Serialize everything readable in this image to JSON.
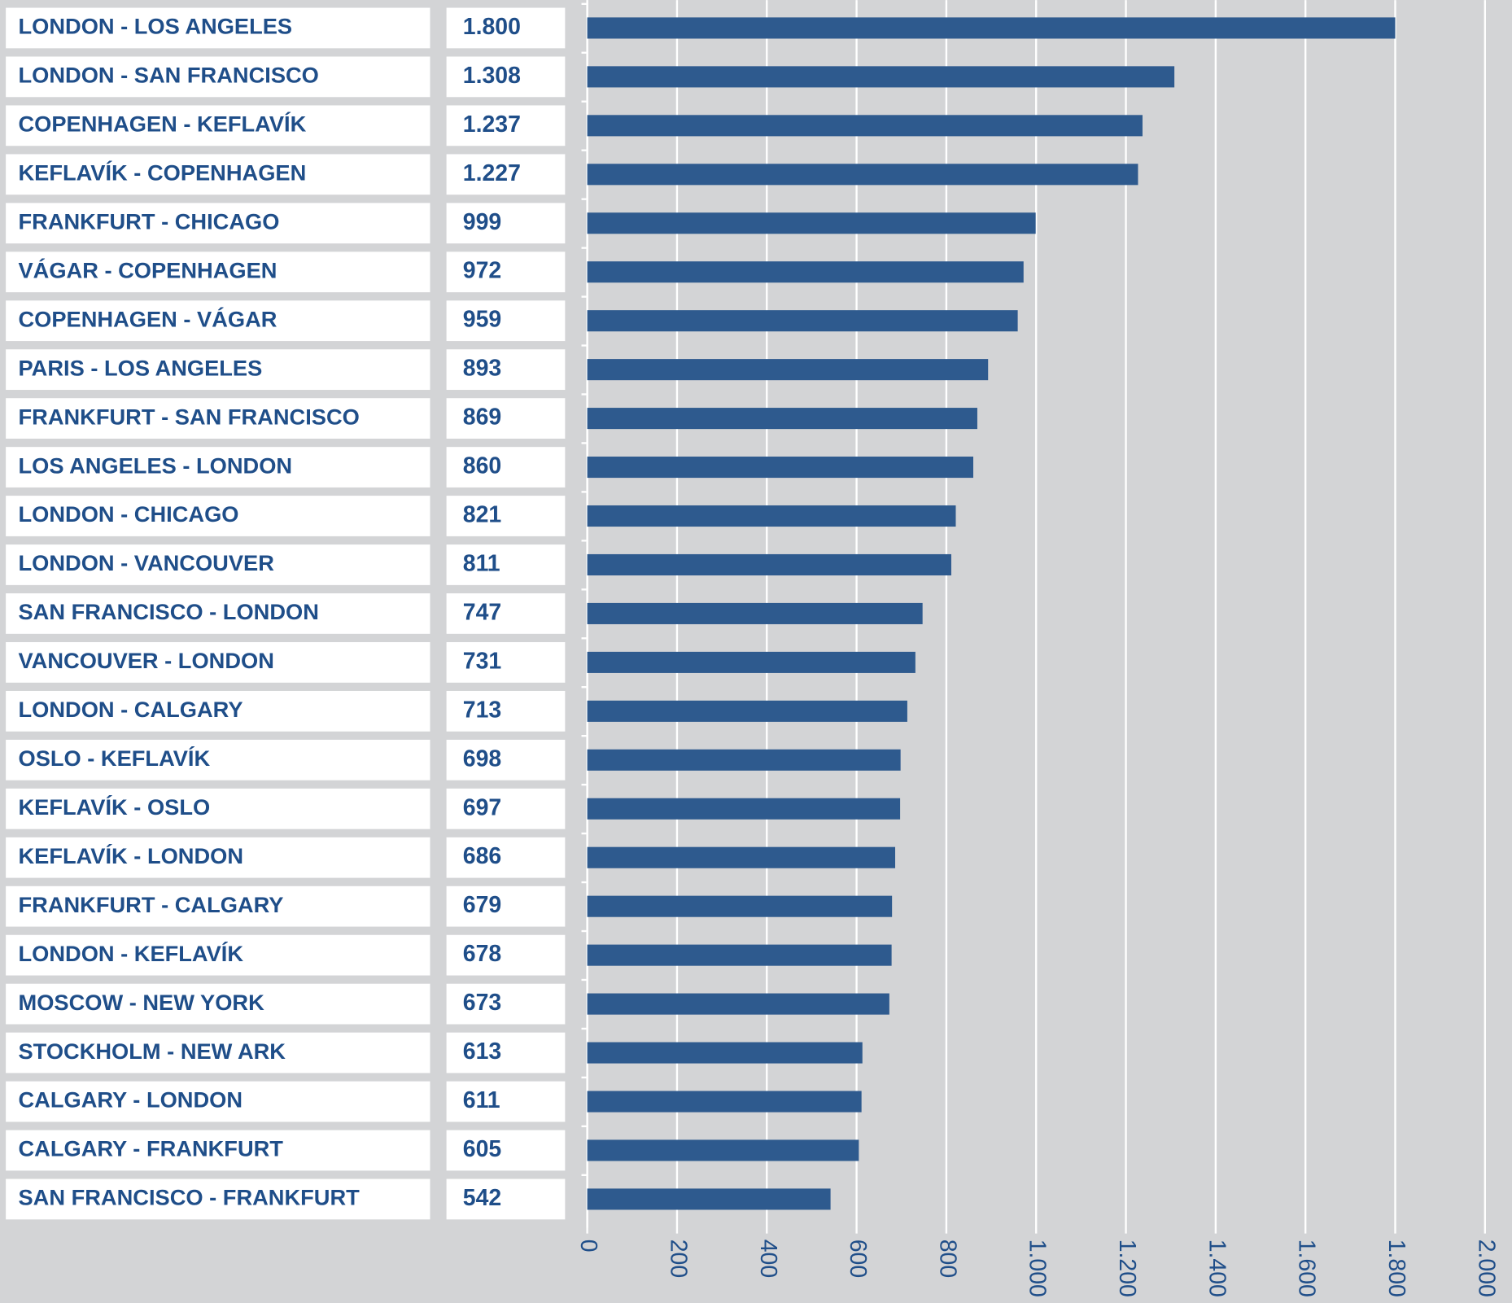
{
  "chart_data": {
    "type": "bar",
    "orientation": "horizontal",
    "categories": [
      "LONDON - LOS ANGELES",
      "LONDON - SAN FRANCISCO",
      "COPENHAGEN - KEFLAVÍK",
      "KEFLAVÍK - COPENHAGEN",
      "FRANKFURT - CHICAGO",
      "VÁGAR - COPENHAGEN",
      "COPENHAGEN - VÁGAR",
      "PARIS - LOS ANGELES",
      "FRANKFURT - SAN FRANCISCO",
      "LOS ANGELES - LONDON",
      "LONDON - CHICAGO",
      "LONDON - VANCOUVER",
      "SAN FRANCISCO - LONDON",
      "VANCOUVER - LONDON",
      "LONDON - CALGARY",
      "OSLO - KEFLAVÍK",
      "KEFLAVÍK - OSLO",
      "KEFLAVÍK - LONDON",
      "FRANKFURT - CALGARY",
      "LONDON - KEFLAVÍK",
      "MOSCOW - NEW YORK",
      "STOCKHOLM - NEW ARK",
      "CALGARY - LONDON",
      "CALGARY - FRANKFURT",
      "SAN FRANCISCO - FRANKFURT"
    ],
    "values": [
      1800,
      1308,
      1237,
      1227,
      999,
      972,
      959,
      893,
      869,
      860,
      821,
      811,
      747,
      731,
      713,
      698,
      697,
      686,
      679,
      678,
      673,
      613,
      611,
      605,
      542
    ],
    "value_labels": [
      "1.800",
      "1.308",
      "1.237",
      "1.227",
      "999",
      "972",
      "959",
      "893",
      "869",
      "860",
      "821",
      "811",
      "747",
      "731",
      "713",
      "698",
      "697",
      "686",
      "679",
      "678",
      "673",
      "613",
      "611",
      "605",
      "542"
    ],
    "color": "#2e5a8e",
    "xlim": [
      0,
      2000
    ],
    "xticks": [
      0,
      200,
      400,
      600,
      800,
      {
        "value": 1000,
        "label": "1.000"
      },
      {
        "value": 1200,
        "label": "1.200"
      },
      {
        "value": 1400,
        "label": "1.400"
      },
      {
        "value": 1600,
        "label": "1.600"
      },
      {
        "value": 1800,
        "label": "1.800"
      },
      {
        "value": 2000,
        "label": "2.000"
      }
    ],
    "grid": true
  }
}
